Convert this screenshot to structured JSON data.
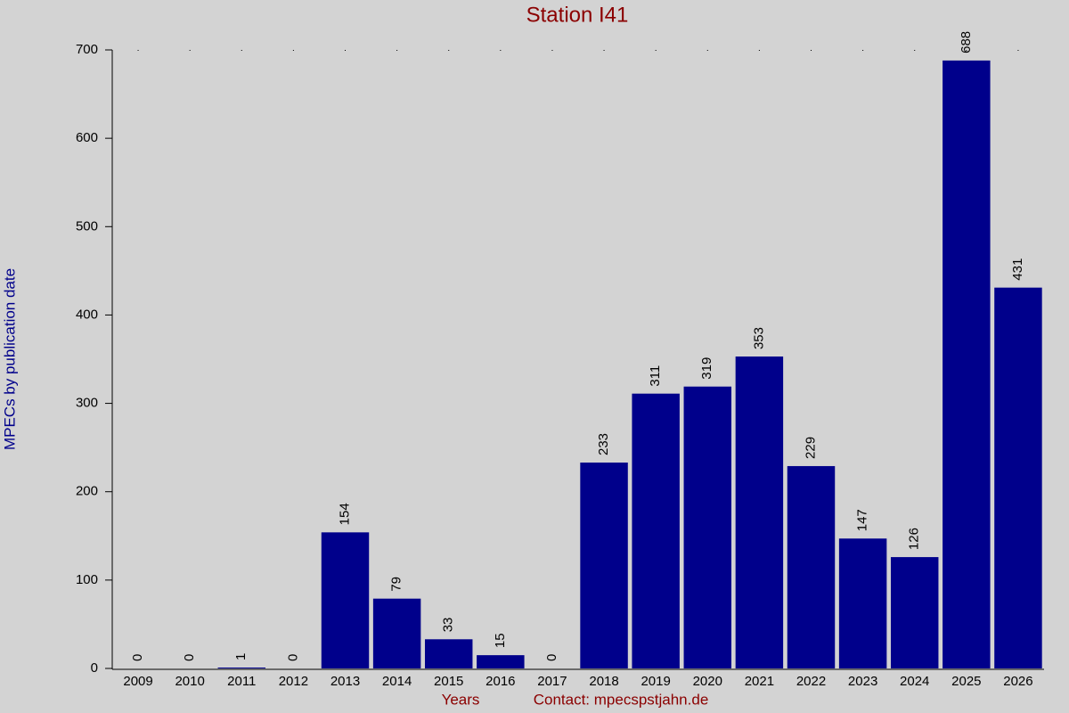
{
  "chart_data": {
    "type": "bar",
    "title": "Station I41",
    "x_label": "Years",
    "contact": "Contact: mpecspstjahn.de",
    "y_label": "MPECs by publication date",
    "categories": [
      "2009",
      "2010",
      "2011",
      "2012",
      "2013",
      "2014",
      "2015",
      "2016",
      "2017",
      "2018",
      "2019",
      "2020",
      "2021",
      "2022",
      "2023",
      "2024",
      "2025",
      "2026"
    ],
    "values": [
      0,
      0,
      1,
      0,
      154,
      79,
      33,
      15,
      0,
      233,
      311,
      319,
      353,
      229,
      147,
      126,
      688,
      431
    ],
    "color": "#00008b",
    "ylim": [
      0,
      700
    ],
    "yticks": [
      0,
      100,
      200,
      300,
      400,
      500,
      600,
      700
    ],
    "grid": false
  }
}
